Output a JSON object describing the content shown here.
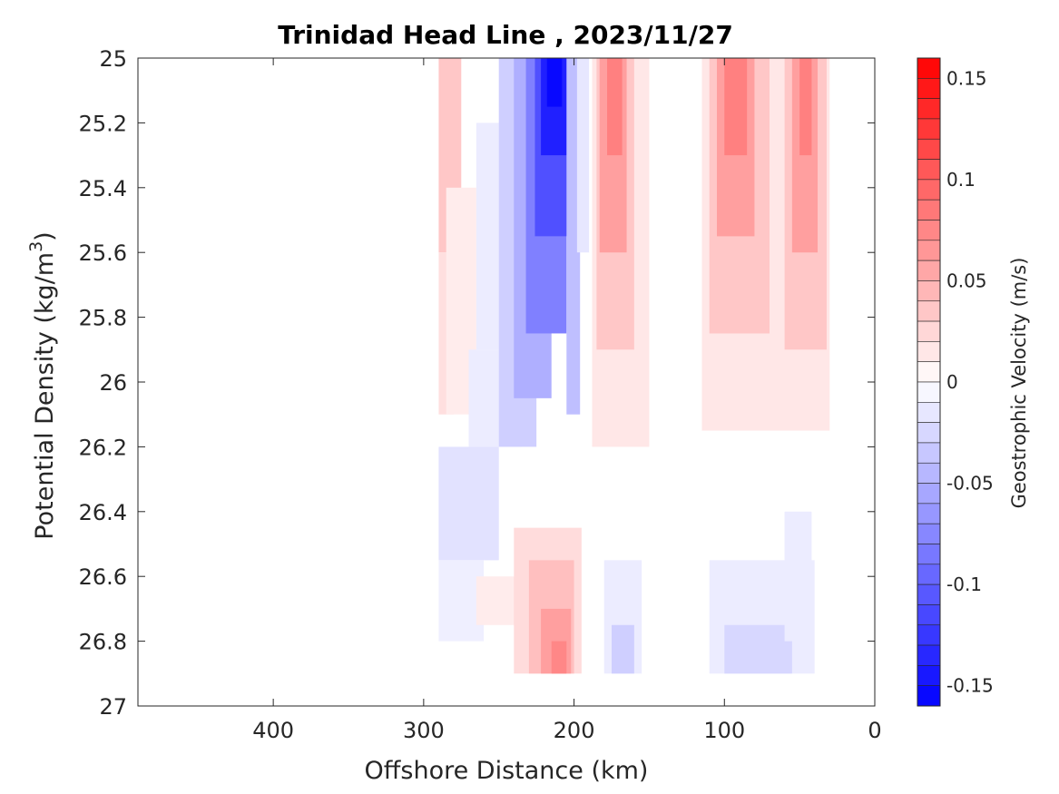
{
  "chart_data": {
    "type": "heatmap",
    "title": "Trinidad Head Line , 2023/11/27",
    "xlabel": "Offshore Distance (km)",
    "ylabel_text": "Potential Density (kg/m",
    "ylabel_sup": "3",
    "ylabel_close": ")",
    "xlim": [
      490,
      0
    ],
    "ylim": [
      25,
      27
    ],
    "x_reversed": true,
    "y_reversed": true,
    "x_ticks": [
      400,
      300,
      200,
      100,
      0
    ],
    "x_tick_labels": [
      "400",
      "300",
      "200",
      "100",
      "0"
    ],
    "y_ticks": [
      25,
      25.2,
      25.4,
      25.6,
      25.8,
      26,
      26.2,
      26.4,
      26.6,
      26.8,
      27
    ],
    "y_tick_labels": [
      "25",
      "25.2",
      "25.4",
      "25.6",
      "25.8",
      "26",
      "26.2",
      "26.4",
      "26.6",
      "26.8",
      "27"
    ],
    "colorbar": {
      "label": "Geostrophic Velocity (m/s)",
      "range": [
        -0.16,
        0.16
      ],
      "ticks": [
        0.15,
        0.1,
        0.05,
        0,
        -0.05,
        -0.1,
        -0.15
      ],
      "tick_labels": [
        "0.15",
        "0.1",
        "0.05",
        "0",
        "-0.05",
        "-0.1",
        "-0.15"
      ],
      "neg_color": "#0000ff",
      "pos_color": "#ff0000",
      "zero_color": "#ffffff"
    },
    "cells": [
      {
        "x": [
          290,
          275
        ],
        "y": [
          25,
          25.6
        ],
        "v": 0.035
      },
      {
        "x": [
          290,
          280
        ],
        "y": [
          25.6,
          26.1
        ],
        "v": 0.02
      },
      {
        "x": [
          285,
          265
        ],
        "y": [
          25.4,
          26.1
        ],
        "v": 0.012
      },
      {
        "x": [
          265,
          240
        ],
        "y": [
          25.2,
          25.9
        ],
        "v": -0.012
      },
      {
        "x": [
          270,
          235
        ],
        "y": [
          25.9,
          26.2
        ],
        "v": -0.012
      },
      {
        "x": [
          290,
          250
        ],
        "y": [
          26.2,
          26.55
        ],
        "v": -0.018
      },
      {
        "x": [
          290,
          260
        ],
        "y": [
          26.55,
          26.8
        ],
        "v": -0.01
      },
      {
        "x": [
          250,
          225
        ],
        "y": [
          25,
          26.2
        ],
        "v": -0.03
      },
      {
        "x": [
          240,
          215
        ],
        "y": [
          25,
          26.05
        ],
        "v": -0.05
      },
      {
        "x": [
          232,
          205
        ],
        "y": [
          25,
          25.85
        ],
        "v": -0.08
      },
      {
        "x": [
          226,
          200
        ],
        "y": [
          25,
          25.55
        ],
        "v": -0.11
      },
      {
        "x": [
          222,
          203
        ],
        "y": [
          25,
          25.3
        ],
        "v": -0.14
      },
      {
        "x": [
          218,
          208
        ],
        "y": [
          25,
          25.15
        ],
        "v": -0.155
      },
      {
        "x": [
          205,
          196
        ],
        "y": [
          25,
          26.1
        ],
        "v": -0.04
      },
      {
        "x": [
          198,
          190
        ],
        "y": [
          25,
          25.6
        ],
        "v": -0.015
      },
      {
        "x": [
          188,
          150
        ],
        "y": [
          25,
          26.2
        ],
        "v": 0.015
      },
      {
        "x": [
          185,
          160
        ],
        "y": [
          25,
          25.9
        ],
        "v": 0.035
      },
      {
        "x": [
          183,
          165
        ],
        "y": [
          25,
          25.6
        ],
        "v": 0.06
      },
      {
        "x": [
          178,
          168
        ],
        "y": [
          25,
          25.3
        ],
        "v": 0.08
      },
      {
        "x": [
          115,
          30
        ],
        "y": [
          25,
          26.15
        ],
        "v": 0.015
      },
      {
        "x": [
          110,
          70
        ],
        "y": [
          25,
          25.85
        ],
        "v": 0.035
      },
      {
        "x": [
          105,
          80
        ],
        "y": [
          25,
          25.55
        ],
        "v": 0.06
      },
      {
        "x": [
          100,
          85
        ],
        "y": [
          25,
          25.3
        ],
        "v": 0.08
      },
      {
        "x": [
          60,
          32
        ],
        "y": [
          25,
          25.9
        ],
        "v": 0.035
      },
      {
        "x": [
          55,
          38
        ],
        "y": [
          25,
          25.6
        ],
        "v": 0.06
      },
      {
        "x": [
          50,
          42
        ],
        "y": [
          25,
          25.3
        ],
        "v": 0.08
      },
      {
        "x": [
          265,
          200
        ],
        "y": [
          26.6,
          26.75
        ],
        "v": 0.012
      },
      {
        "x": [
          240,
          195
        ],
        "y": [
          26.45,
          26.9
        ],
        "v": 0.022
      },
      {
        "x": [
          230,
          200
        ],
        "y": [
          26.55,
          26.9
        ],
        "v": 0.04
      },
      {
        "x": [
          222,
          202
        ],
        "y": [
          26.7,
          26.9
        ],
        "v": 0.06
      },
      {
        "x": [
          215,
          205
        ],
        "y": [
          26.8,
          26.9
        ],
        "v": 0.075
      },
      {
        "x": [
          180,
          155
        ],
        "y": [
          26.55,
          26.9
        ],
        "v": -0.012
      },
      {
        "x": [
          175,
          160
        ],
        "y": [
          26.75,
          26.9
        ],
        "v": -0.03
      },
      {
        "x": [
          110,
          40
        ],
        "y": [
          26.55,
          26.9
        ],
        "v": -0.012
      },
      {
        "x": [
          100,
          55
        ],
        "y": [
          26.75,
          26.9
        ],
        "v": -0.025
      },
      {
        "x": [
          60,
          42
        ],
        "y": [
          26.4,
          26.8
        ],
        "v": -0.012
      }
    ]
  }
}
